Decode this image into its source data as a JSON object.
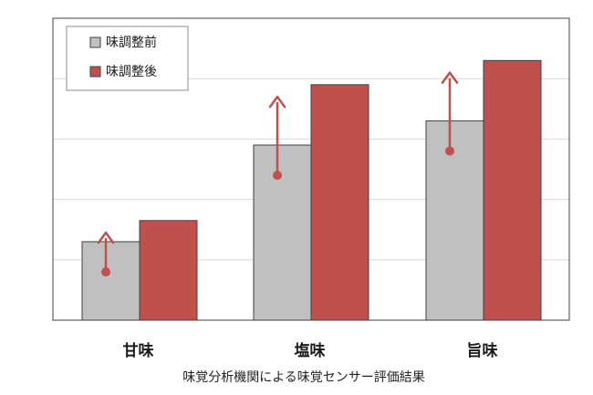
{
  "chart_data": {
    "type": "bar",
    "categories": [
      "甘味",
      "塩味",
      "旨味"
    ],
    "series": [
      {
        "name": "味調整前",
        "values": [
          1.3,
          2.9,
          3.3
        ]
      },
      {
        "name": "味調整後",
        "values": [
          1.65,
          3.9,
          4.3
        ]
      }
    ],
    "annotations": [
      {
        "type": "arrow",
        "category": "甘味",
        "from": 0.8,
        "to": 1.45
      },
      {
        "type": "arrow",
        "category": "塩味",
        "from": 2.4,
        "to": 3.7
      },
      {
        "type": "arrow",
        "category": "旨味",
        "from": 2.8,
        "to": 4.1
      }
    ],
    "ylim": [
      0,
      5
    ],
    "grid": true,
    "legend_position": "top-left",
    "caption": "味覚分析機関による味覚センサー評価結果",
    "colors": {
      "before": "#c0c0c0",
      "after": "#c0504d",
      "arrow": "#c0504d",
      "grid": "#d9d9d9",
      "bar_outline": "#404040"
    }
  }
}
